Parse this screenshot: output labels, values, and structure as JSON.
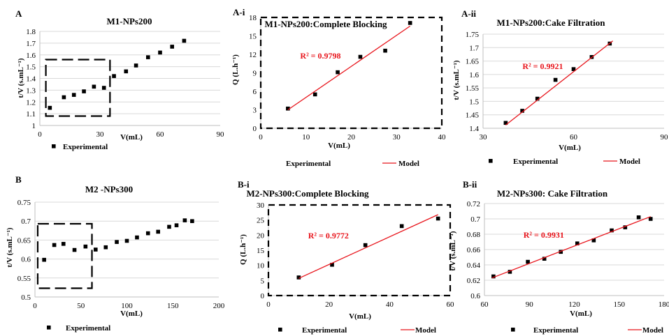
{
  "chart_data": [
    {
      "id": "A",
      "letter": "A",
      "type": "scatter",
      "title": "M1-NPs200",
      "xlabel": "V(mL)",
      "ylabel": "t/V (s.mL⁻¹)",
      "xlim": [
        0,
        90
      ],
      "ylim": [
        1,
        1.8
      ],
      "xticks": [
        "0",
        "30",
        "60",
        "90"
      ],
      "yticks": [
        "1",
        "1.1",
        "1.2",
        "1.3",
        "1.4",
        "1.5",
        "1.6",
        "1.7",
        "1.8"
      ],
      "series": [
        {
          "name": "Experimental",
          "kind": "points",
          "x": [
            5,
            12,
            17,
            22,
            27,
            32,
            37,
            43,
            48,
            54,
            60,
            66,
            72
          ],
          "y": [
            1.15,
            1.24,
            1.26,
            1.29,
            1.33,
            1.32,
            1.42,
            1.46,
            1.51,
            1.58,
            1.62,
            1.67,
            1.72
          ]
        }
      ],
      "highlight_box": {
        "x": [
          3,
          35
        ],
        "y": [
          1.08,
          1.56
        ]
      },
      "legend": [
        "Experimental"
      ],
      "grid": true
    },
    {
      "id": "A-i",
      "letter": "A-i",
      "type": "scatter",
      "title": "M1-NPs200:Complete Blocking",
      "xlabel": "V(mL)",
      "ylabel": "Q (L.h⁻¹)",
      "xlim": [
        0,
        40
      ],
      "ylim": [
        0,
        18
      ],
      "xticks": [
        "0",
        "10",
        "20",
        "30",
        "40"
      ],
      "yticks": [
        "0",
        "3",
        "6",
        "9",
        "12",
        "15",
        "18"
      ],
      "series": [
        {
          "name": "Experimental",
          "kind": "points",
          "x": [
            6,
            12,
            17,
            22,
            27.5,
            33
          ],
          "y": [
            3.2,
            5.5,
            9.1,
            11.6,
            12.6,
            17.1
          ]
        },
        {
          "name": "Model",
          "kind": "line",
          "x": [
            6,
            33
          ],
          "y": [
            3,
            16.6
          ]
        }
      ],
      "annotation": "R² = 0.9798",
      "legend": [
        "Experimental",
        "Model"
      ],
      "grid": false,
      "dashed_frame": true
    },
    {
      "id": "A-ii",
      "letter": "A-ii",
      "type": "scatter",
      "title": "M1-NPs200:Cake Filtration",
      "xlabel": "V(mL)",
      "ylabel": "t/V (s.mL⁻¹)",
      "xlim": [
        30,
        90
      ],
      "ylim": [
        1.4,
        1.75
      ],
      "xticks": [
        "30",
        "60",
        "90"
      ],
      "yticks": [
        "1.4",
        "1.45",
        "1.5",
        "1.55",
        "1.6",
        "1.65",
        "1.7",
        "1.75"
      ],
      "series": [
        {
          "name": "Experimental",
          "kind": "points",
          "x": [
            37.5,
            43,
            48,
            54,
            60,
            66,
            72
          ],
          "y": [
            1.42,
            1.465,
            1.51,
            1.58,
            1.62,
            1.665,
            1.715
          ]
        },
        {
          "name": "Model",
          "kind": "line",
          "x": [
            37.5,
            73
          ],
          "y": [
            1.412,
            1.725
          ]
        }
      ],
      "annotation": "R² = 0.9921",
      "legend": [
        "Experimental",
        "Model"
      ],
      "grid": true
    },
    {
      "id": "B",
      "letter": "B",
      "type": "scatter",
      "title": "M2 -NPs300",
      "xlabel": "V(mL)",
      "ylabel": "t/V (s.mL⁻¹)",
      "xlim": [
        0,
        200
      ],
      "ylim": [
        0.5,
        0.75
      ],
      "xticks": [
        "0",
        "50",
        "100",
        "150",
        "200"
      ],
      "yticks": [
        "0.5",
        "0.55",
        "0.6",
        "0.65",
        "0.7",
        "0.75"
      ],
      "series": [
        {
          "name": "Experimental",
          "kind": "points",
          "x": [
            10,
            21,
            31,
            43,
            55,
            66,
            77,
            89,
            100,
            111,
            123,
            134,
            146,
            154,
            163,
            171
          ],
          "y": [
            0.598,
            0.637,
            0.64,
            0.624,
            0.633,
            0.625,
            0.631,
            0.645,
            0.648,
            0.657,
            0.668,
            0.672,
            0.685,
            0.689,
            0.702,
            0.7
          ]
        }
      ],
      "highlight_box": {
        "x": [
          3,
          62
        ],
        "y": [
          0.523,
          0.693
        ]
      },
      "legend": [
        "Experimental"
      ],
      "grid": true
    },
    {
      "id": "B-i",
      "letter": "B-i",
      "type": "scatter",
      "title": "M2-NPs300:Complete Blocking",
      "xlabel": "V(mL)",
      "ylabel": "Q (L.h⁻¹)",
      "xlim": [
        0,
        60
      ],
      "ylim": [
        0,
        30
      ],
      "xticks": [
        "0",
        "20",
        "40",
        "60"
      ],
      "yticks": [
        "0",
        "5",
        "10",
        "15",
        "20",
        "25",
        "30"
      ],
      "series": [
        {
          "name": "Experimental",
          "kind": "points",
          "x": [
            10,
            21,
            32,
            44,
            56
          ],
          "y": [
            6,
            10.2,
            16.7,
            23,
            25.5
          ]
        },
        {
          "name": "Model",
          "kind": "line",
          "x": [
            10,
            56
          ],
          "y": [
            5.7,
            26.8
          ]
        }
      ],
      "annotation": "R² = 0.9772",
      "legend": [
        "Experimental",
        "Model"
      ],
      "grid": false,
      "dashed_frame": true
    },
    {
      "id": "B-ii",
      "letter": "B-ii",
      "type": "scatter",
      "title": "M2-NPs300: Cake Filtration",
      "xlabel": "V(mL)",
      "ylabel": "t/V (s.mL⁻¹)",
      "xlim": [
        60,
        180
      ],
      "ylim": [
        0.6,
        0.72
      ],
      "xticks": [
        "60",
        "90",
        "120",
        "150",
        "180"
      ],
      "yticks": [
        "0.6",
        "0.62",
        "0.64",
        "0.66",
        "0.68",
        "0.7",
        "0.72"
      ],
      "series": [
        {
          "name": "Experimental",
          "kind": "points",
          "x": [
            66,
            77,
            89,
            100,
            111,
            122,
            133,
            145,
            154,
            163,
            171
          ],
          "y": [
            0.625,
            0.631,
            0.644,
            0.648,
            0.657,
            0.668,
            0.672,
            0.685,
            0.689,
            0.702,
            0.7
          ]
        },
        {
          "name": "Model",
          "kind": "line",
          "x": [
            65,
            171
          ],
          "y": [
            0.623,
            0.703
          ]
        }
      ],
      "annotation": "R² = 0.9931",
      "legend": [
        "Experimental",
        "Model"
      ],
      "grid": true
    }
  ],
  "colors": {
    "points": "#000000",
    "model_line": "#e8141b",
    "annotation": "#e8141b",
    "grid": "#d9d9d9",
    "axis": "#bfbfbf"
  }
}
